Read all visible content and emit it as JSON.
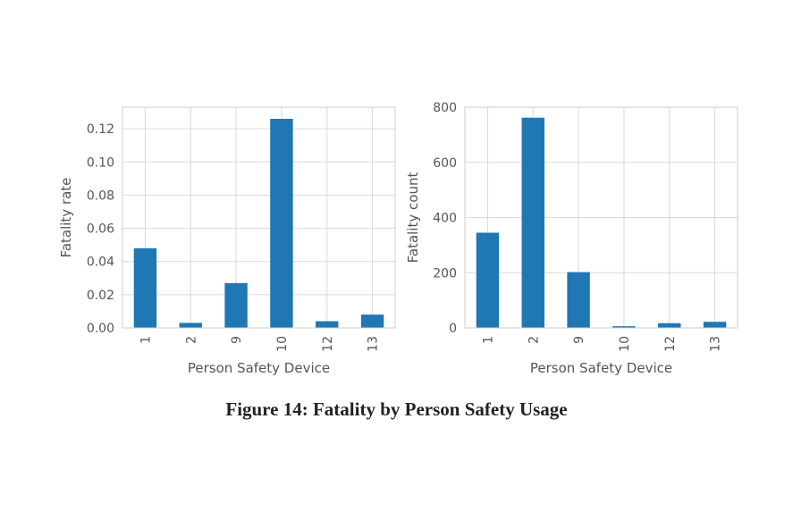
{
  "caption": "Figure 14: Fatality by Person Safety Usage",
  "bar_color": "#1f77b4",
  "chart_data": [
    {
      "type": "bar",
      "categories": [
        "1",
        "2",
        "9",
        "10",
        "12",
        "13"
      ],
      "values": [
        0.048,
        0.003,
        0.027,
        0.126,
        0.004,
        0.008
      ],
      "xlabel": "Person Safety Device",
      "ylabel": "Fatality rate",
      "ylim": [
        0,
        0.133
      ],
      "yticks": [
        0.0,
        0.02,
        0.04,
        0.06,
        0.08,
        0.1,
        0.12
      ],
      "ytick_labels": [
        "0.00",
        "0.02",
        "0.04",
        "0.06",
        "0.08",
        "0.10",
        "0.12"
      ],
      "grid": true
    },
    {
      "type": "bar",
      "categories": [
        "1",
        "2",
        "9",
        "10",
        "12",
        "13"
      ],
      "values": [
        345,
        762,
        202,
        6,
        17,
        22
      ],
      "xlabel": "Person Safety Device",
      "ylabel": "Fatality count",
      "ylim": [
        0,
        800
      ],
      "yticks": [
        0,
        200,
        400,
        600,
        800
      ],
      "ytick_labels": [
        "0",
        "200",
        "400",
        "600",
        "800"
      ],
      "grid": true
    }
  ]
}
